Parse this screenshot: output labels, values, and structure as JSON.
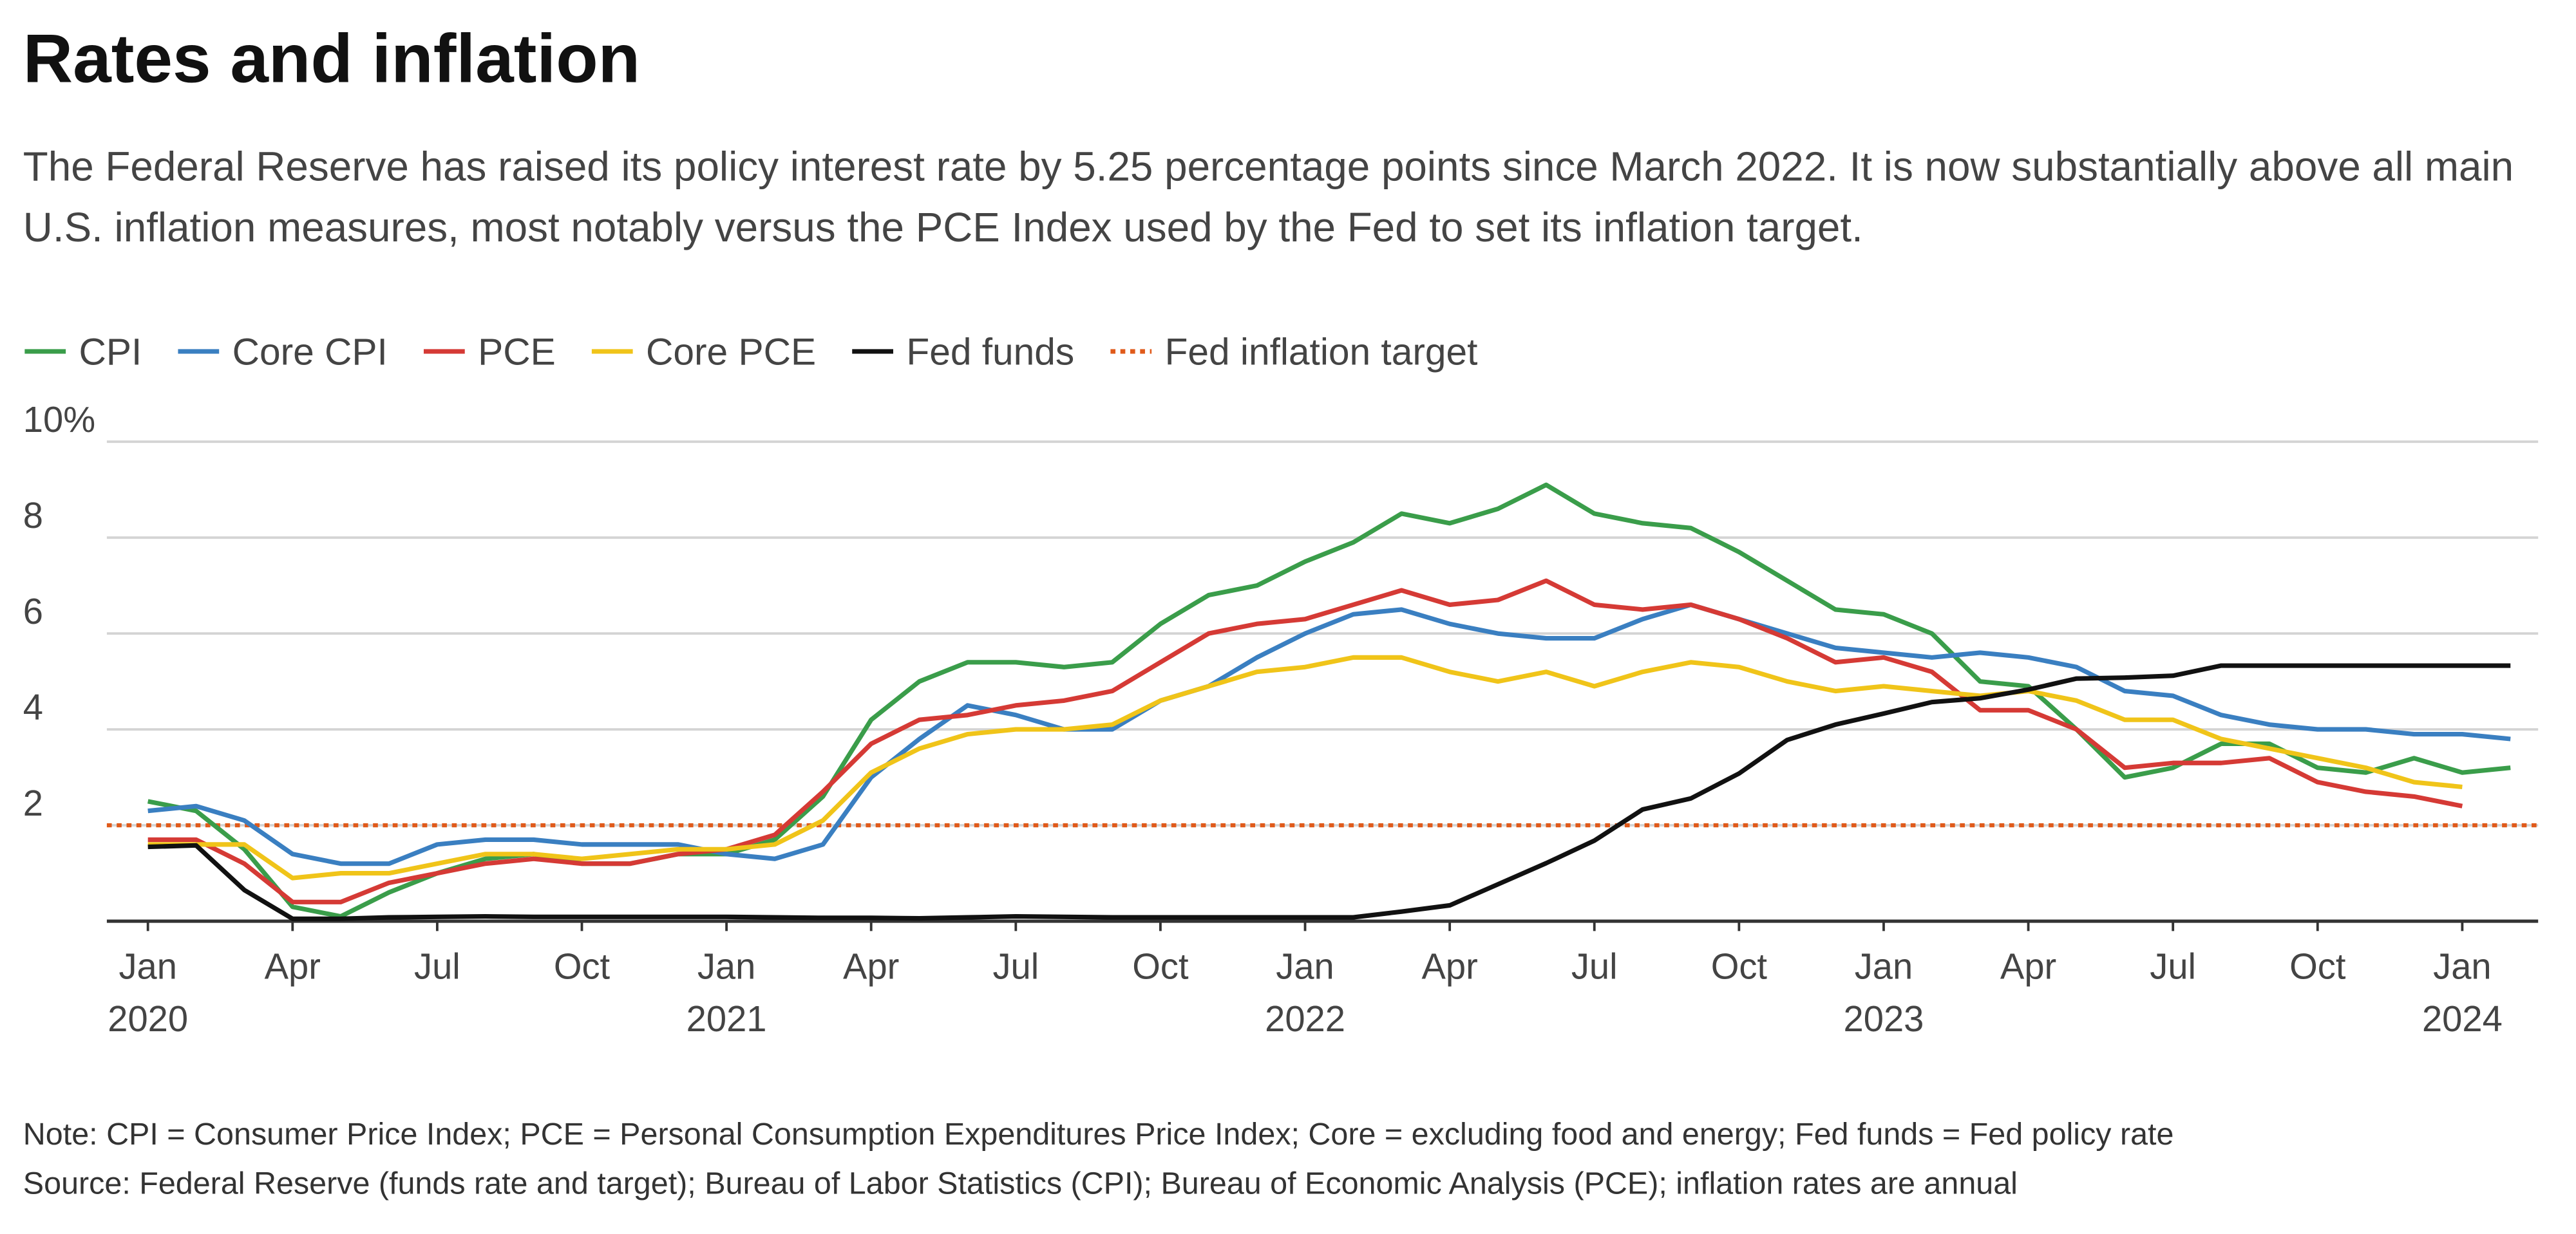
{
  "chart_data": {
    "type": "line",
    "title": "Rates and inflation",
    "subtitle": "The Federal Reserve has raised its policy interest rate by 5.25 percentage points since March 2022. It is now substantially above all main U.S. inflation measures, most notably versus the PCE Index used by the Fed to set its inflation target.",
    "note": "Note: CPI = Consumer Price Index; PCE = Personal Consumption Expenditures Price Index; Core = excluding food and energy; Fed funds = Fed policy rate",
    "source": "Source: Federal Reserve (funds rate and target); Bureau of Labor Statistics (CPI); Bureau of Economic Analysis (PCE); inflation rates are annual",
    "x": [
      "2020-01",
      "2020-02",
      "2020-03",
      "2020-04",
      "2020-05",
      "2020-06",
      "2020-07",
      "2020-08",
      "2020-09",
      "2020-10",
      "2020-11",
      "2020-12",
      "2021-01",
      "2021-02",
      "2021-03",
      "2021-04",
      "2021-05",
      "2021-06",
      "2021-07",
      "2021-08",
      "2021-09",
      "2021-10",
      "2021-11",
      "2021-12",
      "2022-01",
      "2022-02",
      "2022-03",
      "2022-04",
      "2022-05",
      "2022-06",
      "2022-07",
      "2022-08",
      "2022-09",
      "2022-10",
      "2022-11",
      "2022-12",
      "2023-01",
      "2023-02",
      "2023-03",
      "2023-04",
      "2023-05",
      "2023-06",
      "2023-07",
      "2023-08",
      "2023-09",
      "2023-10",
      "2023-11",
      "2023-12",
      "2024-01",
      "2024-02"
    ],
    "xticks": [
      {
        "value": "2020-01",
        "label": "Jan",
        "year": "2020"
      },
      {
        "value": "2020-04",
        "label": "Apr"
      },
      {
        "value": "2020-07",
        "label": "Jul"
      },
      {
        "value": "2020-10",
        "label": "Oct"
      },
      {
        "value": "2021-01",
        "label": "Jan",
        "year": "2021"
      },
      {
        "value": "2021-04",
        "label": "Apr"
      },
      {
        "value": "2021-07",
        "label": "Jul"
      },
      {
        "value": "2021-10",
        "label": "Oct"
      },
      {
        "value": "2022-01",
        "label": "Jan",
        "year": "2022"
      },
      {
        "value": "2022-04",
        "label": "Apr"
      },
      {
        "value": "2022-07",
        "label": "Jul"
      },
      {
        "value": "2022-10",
        "label": "Oct"
      },
      {
        "value": "2023-01",
        "label": "Jan",
        "year": "2023"
      },
      {
        "value": "2023-04",
        "label": "Apr"
      },
      {
        "value": "2023-07",
        "label": "Jul"
      },
      {
        "value": "2023-10",
        "label": "Oct"
      },
      {
        "value": "2024-01",
        "label": "Jan",
        "year": "2024"
      }
    ],
    "ylim": [
      0,
      10
    ],
    "yticks": [
      2,
      4,
      6,
      8,
      {
        "value": 10,
        "label": "10%"
      }
    ],
    "grid": true,
    "legend": "top-left",
    "series": [
      {
        "name": "CPI",
        "color": "#3a9d4a",
        "values": [
          2.5,
          2.3,
          1.5,
          0.3,
          0.1,
          0.6,
          1.0,
          1.3,
          1.4,
          1.2,
          1.2,
          1.4,
          1.4,
          1.7,
          2.6,
          4.2,
          5.0,
          5.4,
          5.4,
          5.3,
          5.4,
          6.2,
          6.8,
          7.0,
          7.5,
          7.9,
          8.5,
          8.3,
          8.6,
          9.1,
          8.5,
          8.3,
          8.2,
          7.7,
          7.1,
          6.5,
          6.4,
          6.0,
          5.0,
          4.9,
          4.0,
          3.0,
          3.2,
          3.7,
          3.7,
          3.2,
          3.1,
          3.4,
          3.1,
          3.2
        ]
      },
      {
        "name": "Core CPI",
        "color": "#3a7fc1",
        "values": [
          2.3,
          2.4,
          2.1,
          1.4,
          1.2,
          1.2,
          1.6,
          1.7,
          1.7,
          1.6,
          1.6,
          1.6,
          1.4,
          1.3,
          1.6,
          3.0,
          3.8,
          4.5,
          4.3,
          4.0,
          4.0,
          4.6,
          4.9,
          5.5,
          6.0,
          6.4,
          6.5,
          6.2,
          6.0,
          5.9,
          5.9,
          6.3,
          6.6,
          6.3,
          6.0,
          5.7,
          5.6,
          5.5,
          5.6,
          5.5,
          5.3,
          4.8,
          4.7,
          4.3,
          4.1,
          4.0,
          4.0,
          3.9,
          3.9,
          3.8
        ]
      },
      {
        "name": "PCE",
        "color": "#d53a35",
        "values": [
          1.7,
          1.7,
          1.2,
          0.4,
          0.4,
          0.8,
          1.0,
          1.2,
          1.3,
          1.2,
          1.2,
          1.4,
          1.5,
          1.8,
          2.7,
          3.7,
          4.2,
          4.3,
          4.5,
          4.6,
          4.8,
          5.4,
          6.0,
          6.2,
          6.3,
          6.6,
          6.9,
          6.6,
          6.7,
          7.1,
          6.6,
          6.5,
          6.6,
          6.3,
          5.9,
          5.4,
          5.5,
          5.2,
          4.4,
          4.4,
          4.0,
          3.2,
          3.3,
          3.3,
          3.4,
          2.9,
          2.7,
          2.6,
          2.4,
          null
        ]
      },
      {
        "name": "Core PCE",
        "color": "#f0c419",
        "values": [
          1.6,
          1.6,
          1.6,
          0.9,
          1.0,
          1.0,
          1.2,
          1.4,
          1.4,
          1.3,
          1.4,
          1.5,
          1.5,
          1.6,
          2.1,
          3.1,
          3.6,
          3.9,
          4.0,
          4.0,
          4.1,
          4.6,
          4.9,
          5.2,
          5.3,
          5.5,
          5.5,
          5.2,
          5.0,
          5.2,
          4.9,
          5.2,
          5.4,
          5.3,
          5.0,
          4.8,
          4.9,
          4.8,
          4.7,
          4.8,
          4.6,
          4.2,
          4.2,
          3.8,
          3.6,
          3.4,
          3.2,
          2.9,
          2.8,
          null
        ]
      },
      {
        "name": "Fed funds",
        "color": "#111111",
        "values": [
          1.55,
          1.58,
          0.65,
          0.05,
          0.05,
          0.08,
          0.09,
          0.1,
          0.09,
          0.09,
          0.09,
          0.09,
          0.09,
          0.08,
          0.07,
          0.07,
          0.06,
          0.08,
          0.1,
          0.09,
          0.08,
          0.08,
          0.08,
          0.08,
          0.08,
          0.08,
          0.2,
          0.33,
          0.77,
          1.21,
          1.68,
          2.33,
          2.56,
          3.08,
          3.78,
          4.1,
          4.33,
          4.57,
          4.65,
          4.83,
          5.06,
          5.08,
          5.12,
          5.33,
          5.33,
          5.33,
          5.33,
          5.33,
          5.33,
          5.33
        ]
      }
    ],
    "reference_line": {
      "name": "Fed inflation target",
      "value": 2,
      "color": "#e05a1a",
      "dotted": true
    }
  }
}
